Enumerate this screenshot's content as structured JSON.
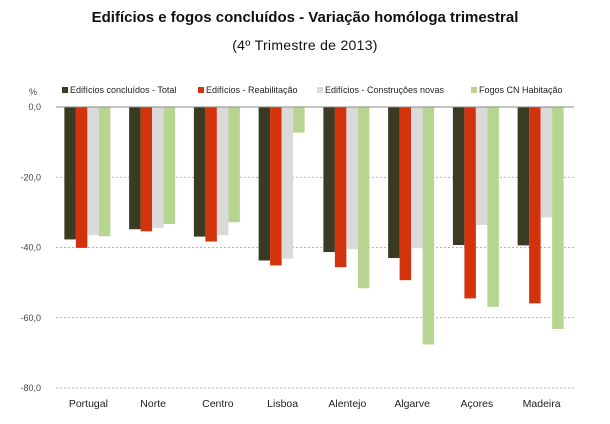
{
  "chart_data": {
    "type": "bar",
    "title": "Edifícios e fogos concluídos - Variação homóloga trimestral",
    "subtitle": "(4º Trimestre de 2013)",
    "ylabel": "%",
    "xlabel": "",
    "ylim": [
      -80,
      0
    ],
    "yticks": [
      0,
      -20,
      -40,
      -60,
      -80
    ],
    "ytick_labels": [
      "0,0",
      "-20,0",
      "-40,0",
      "-60,0",
      "-80,0"
    ],
    "grid": true,
    "legend_position": "top",
    "categories": [
      "Portugal",
      "Norte",
      "Centro",
      "Lisboa",
      "Alentejo",
      "Algarve",
      "Açores",
      "Madeira"
    ],
    "series": [
      {
        "name": "Edifícios concluídos - Total",
        "color": "#3b3a22",
        "values": [
          -37.7,
          -34.8,
          -36.9,
          -43.7,
          -41.3,
          -43.0,
          -39.3,
          -39.4
        ]
      },
      {
        "name": "Edifícios - Reabilitação",
        "color": "#d2320c",
        "values": [
          -40.1,
          -35.4,
          -38.3,
          -45.1,
          -45.6,
          -49.3,
          -54.5,
          -55.9
        ]
      },
      {
        "name": "Edifícios - Construções novas",
        "color": "#dadada",
        "values": [
          -36.5,
          -34.5,
          -36.5,
          -43.2,
          -40.5,
          -40.2,
          -33.6,
          -31.4
        ]
      },
      {
        "name": "Fogos CN Habitação",
        "color": "#b7d590",
        "values": [
          -36.8,
          -33.3,
          -32.8,
          -7.3,
          -51.6,
          -67.6,
          -56.9,
          -63.2
        ]
      }
    ]
  }
}
